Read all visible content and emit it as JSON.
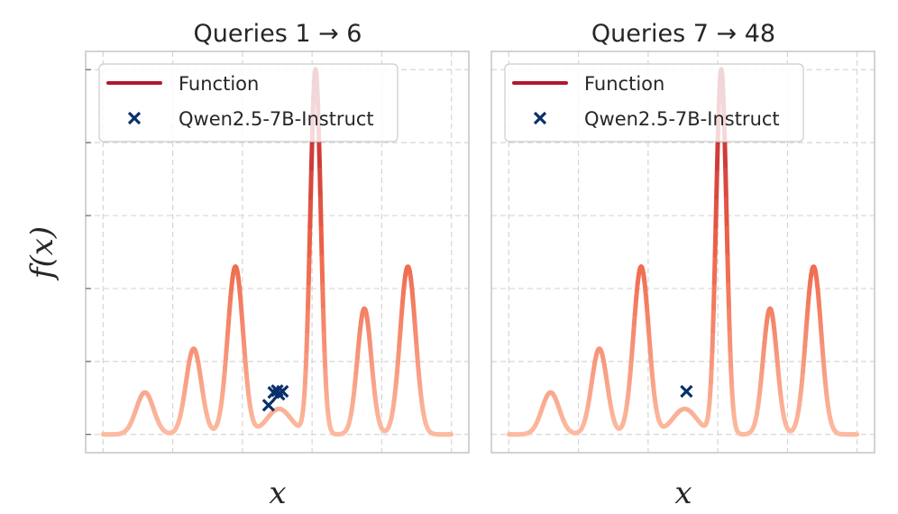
{
  "chart_data": [
    {
      "type": "line",
      "title": "Queries 1 → 6",
      "xlabel": "x",
      "ylabel": "f(x)",
      "xlim": [
        -0.05,
        1.05
      ],
      "ylim": [
        -0.05,
        1.05
      ],
      "grid": true,
      "legend": {
        "placement": "top-left",
        "entries": [
          "Function",
          "Qwen2.5-7B-Instruct"
        ]
      },
      "series": [
        {
          "name": "Function",
          "kind": "line",
          "color": "#b2182b"
        },
        {
          "name": "Qwen2.5-7B-Instruct",
          "kind": "scatter",
          "color": "#08306b",
          "points": [
            {
              "x": 0.475,
              "y": 0.08
            },
            {
              "x": 0.49,
              "y": 0.115
            },
            {
              "x": 0.5,
              "y": 0.12
            },
            {
              "x": 0.505,
              "y": 0.11
            },
            {
              "x": 0.515,
              "y": 0.118
            }
          ]
        }
      ]
    },
    {
      "type": "line",
      "title": "Queries 7 → 48",
      "xlabel": "x",
      "ylabel": "",
      "xlim": [
        -0.05,
        1.05
      ],
      "ylim": [
        -0.05,
        1.05
      ],
      "grid": true,
      "legend": {
        "placement": "top-left",
        "entries": [
          "Function",
          "Qwen2.5-7B-Instruct"
        ]
      },
      "series": [
        {
          "name": "Function",
          "kind": "line",
          "color": "#b2182b"
        },
        {
          "name": "Qwen2.5-7B-Instruct",
          "kind": "scatter",
          "color": "#08306b",
          "points": [
            {
              "x": 0.51,
              "y": 0.118
            }
          ]
        }
      ]
    }
  ],
  "function_bumps": [
    {
      "center": 0.12,
      "height": 0.115,
      "width": 0.025
    },
    {
      "center": 0.26,
      "height": 0.235,
      "width": 0.022
    },
    {
      "center": 0.38,
      "height": 0.46,
      "width": 0.022
    },
    {
      "center": 0.61,
      "height": 1.0,
      "width": 0.015
    },
    {
      "center": 0.75,
      "height": 0.345,
      "width": 0.02
    },
    {
      "center": 0.875,
      "height": 0.46,
      "width": 0.022
    },
    {
      "center": 0.505,
      "height": 0.07,
      "width": 0.035
    }
  ],
  "colors": {
    "function_low": "#fcbba1",
    "function_mid": "#ef6548",
    "function_high": "#b2182b",
    "marker": "#08306b"
  }
}
